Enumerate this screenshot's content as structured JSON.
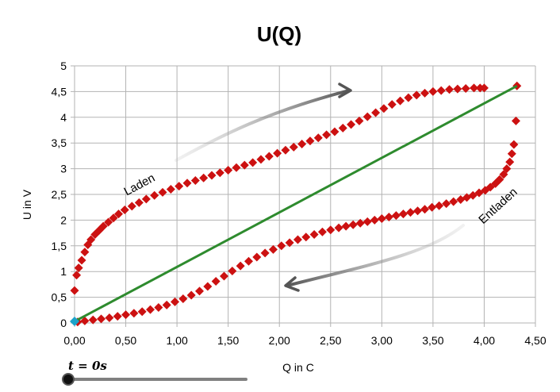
{
  "chart_data": {
    "type": "scatter",
    "title": "U(Q)",
    "xlabel": "Q in C",
    "ylabel": "U in V",
    "xlim": [
      0,
      4.5
    ],
    "ylim": [
      0,
      5
    ],
    "x_ticks": [
      "0,00",
      "0,50",
      "1,00",
      "1,50",
      "2,00",
      "2,50",
      "3,00",
      "3,50",
      "4,00",
      "4,50"
    ],
    "y_ticks": [
      "0",
      "0,5",
      "1",
      "1,5",
      "2",
      "2,5",
      "3",
      "3,5",
      "4",
      "4,5",
      "5"
    ],
    "grid": true,
    "annotations": [
      "Laden",
      "Entladen"
    ],
    "series": [
      {
        "color": "#cc1111",
        "marker": "diamond",
        "x": [
          0.0,
          0.02,
          0.04,
          0.07,
          0.1,
          0.13,
          0.16,
          0.2,
          0.24,
          0.28,
          0.33,
          0.38,
          0.43,
          0.49,
          0.56,
          0.63,
          0.7,
          0.78,
          0.86,
          0.94,
          1.02,
          1.1,
          1.18,
          1.26,
          1.34,
          1.42,
          1.5,
          1.58,
          1.66,
          1.74,
          1.82,
          1.9,
          1.98,
          2.06,
          2.14,
          2.22,
          2.3,
          2.38,
          2.46,
          2.54,
          2.62,
          2.7,
          2.78,
          2.86,
          2.94,
          3.02,
          3.1,
          3.18,
          3.26,
          3.34,
          3.42,
          3.5,
          3.58,
          3.66,
          3.74,
          3.82,
          3.9,
          3.96,
          4.0
        ],
        "y": [
          0.63,
          0.93,
          1.07,
          1.22,
          1.38,
          1.52,
          1.62,
          1.72,
          1.8,
          1.88,
          1.96,
          2.04,
          2.12,
          2.2,
          2.27,
          2.34,
          2.41,
          2.48,
          2.54,
          2.6,
          2.66,
          2.72,
          2.77,
          2.82,
          2.87,
          2.92,
          2.97,
          3.02,
          3.07,
          3.12,
          3.18,
          3.24,
          3.3,
          3.36,
          3.42,
          3.48,
          3.54,
          3.6,
          3.66,
          3.72,
          3.79,
          3.86,
          3.93,
          4.01,
          4.09,
          4.17,
          4.25,
          4.32,
          4.38,
          4.43,
          4.47,
          4.5,
          4.52,
          4.54,
          4.55,
          4.56,
          4.57,
          4.57,
          4.57
        ]
      },
      {
        "color": "#cc1111",
        "marker": "diamond",
        "x": [
          4.32,
          4.31,
          4.29,
          4.27,
          4.25,
          4.22,
          4.19,
          4.15,
          4.11,
          4.06,
          4.01,
          3.95,
          3.89,
          3.83,
          3.77,
          3.7,
          3.63,
          3.56,
          3.49,
          3.42,
          3.35,
          3.28,
          3.21,
          3.14,
          3.07,
          3.0,
          2.93,
          2.86,
          2.79,
          2.72,
          2.65,
          2.58,
          2.5,
          2.42,
          2.34,
          2.26,
          2.18,
          2.1,
          2.02,
          1.94,
          1.86,
          1.78,
          1.7,
          1.62,
          1.54,
          1.46,
          1.38,
          1.3,
          1.22,
          1.14,
          1.06,
          0.98,
          0.9,
          0.82,
          0.74,
          0.66,
          0.58,
          0.5,
          0.42,
          0.34,
          0.26,
          0.18,
          0.1,
          0.03
        ],
        "y": [
          4.61,
          3.93,
          3.47,
          3.29,
          3.13,
          3.0,
          2.89,
          2.79,
          2.71,
          2.64,
          2.58,
          2.53,
          2.48,
          2.44,
          2.4,
          2.36,
          2.32,
          2.28,
          2.25,
          2.21,
          2.18,
          2.15,
          2.12,
          2.09,
          2.06,
          2.03,
          2.0,
          1.97,
          1.94,
          1.91,
          1.88,
          1.85,
          1.81,
          1.77,
          1.72,
          1.67,
          1.62,
          1.56,
          1.5,
          1.43,
          1.36,
          1.28,
          1.2,
          1.11,
          1.01,
          0.91,
          0.81,
          0.71,
          0.62,
          0.54,
          0.47,
          0.41,
          0.35,
          0.3,
          0.26,
          0.22,
          0.19,
          0.16,
          0.13,
          0.1,
          0.08,
          0.06,
          0.04,
          0.02
        ]
      },
      {
        "color": "#2e8b2e",
        "marker": "line",
        "x": [
          0.0,
          4.32
        ],
        "y": [
          0.03,
          4.61
        ]
      },
      {
        "color": "#1ca3c9",
        "marker": "diamond",
        "x": [
          0.0
        ],
        "y": [
          0.03
        ]
      }
    ]
  },
  "slider": {
    "label": "t = 0s"
  }
}
